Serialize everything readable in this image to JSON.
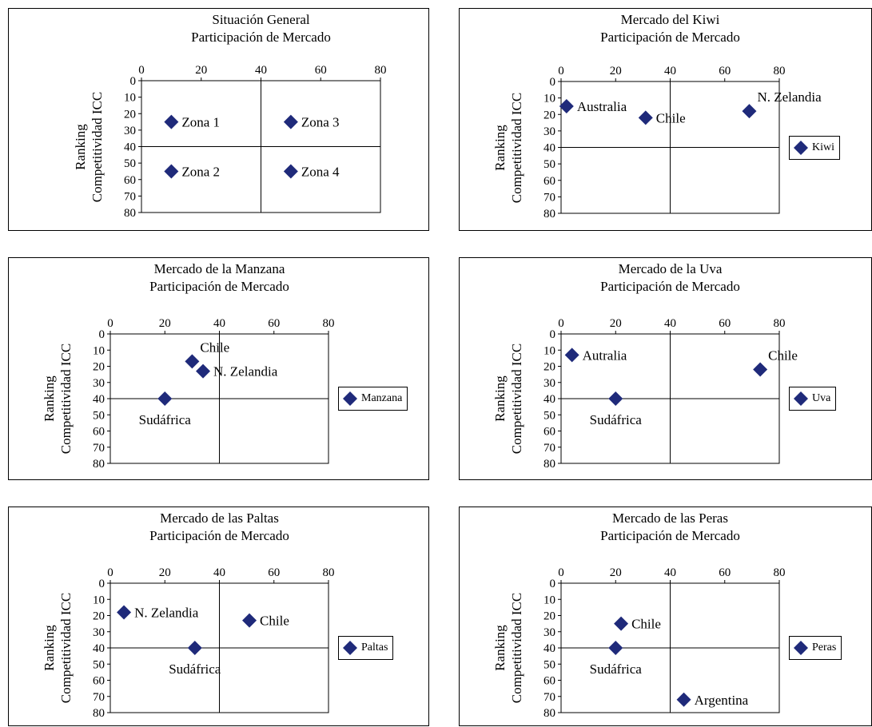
{
  "chart_data": [
    {
      "type": "scatter",
      "title": "Situación General",
      "subtitle": "Participación de Mercado",
      "ylabel": [
        "Ranking",
        "Competitividad ICC"
      ],
      "xlim": [
        0,
        80
      ],
      "ylim": [
        0,
        80
      ],
      "xticks": [
        "0",
        "20",
        "40",
        "60",
        "80"
      ],
      "yticks": [
        "0",
        "10",
        "20",
        "30",
        "40",
        "50",
        "60",
        "70",
        "80"
      ],
      "points": [
        {
          "x": 10,
          "y": 25,
          "label": "Zona 1"
        },
        {
          "x": 10,
          "y": 55,
          "label": "Zona 2"
        },
        {
          "x": 50,
          "y": 25,
          "label": "Zona 3"
        },
        {
          "x": 50,
          "y": 55,
          "label": "Zona 4"
        }
      ],
      "legend": ""
    },
    {
      "type": "scatter",
      "title": "Mercado del Kiwi",
      "subtitle": "Participación de Mercado",
      "ylabel": [
        "Ranking",
        "Competitividad ICC"
      ],
      "xlim": [
        0,
        80
      ],
      "ylim": [
        0,
        80
      ],
      "xticks": [
        "0",
        "20",
        "40",
        "60",
        "80"
      ],
      "yticks": [
        "0",
        "10",
        "20",
        "30",
        "40",
        "50",
        "60",
        "70",
        "80"
      ],
      "points": [
        {
          "x": 2,
          "y": 15,
          "label": "Australia"
        },
        {
          "x": 31,
          "y": 22,
          "label": "Chile"
        },
        {
          "x": 69,
          "y": 18,
          "label": "N. Zelandia"
        }
      ],
      "legend": "Kiwi"
    },
    {
      "type": "scatter",
      "title": "Mercado de la Manzana",
      "subtitle": "Participación de Mercado",
      "ylabel": [
        "Ranking",
        "Competitividad ICC"
      ],
      "xlim": [
        0,
        80
      ],
      "ylim": [
        0,
        80
      ],
      "xticks": [
        "0",
        "20",
        "40",
        "60",
        "80"
      ],
      "yticks": [
        "0",
        "10",
        "20",
        "30",
        "40",
        "50",
        "60",
        "70",
        "80"
      ],
      "points": [
        {
          "x": 30,
          "y": 17,
          "label": "Chile"
        },
        {
          "x": 34,
          "y": 23,
          "label": "N. Zelandia"
        },
        {
          "x": 20,
          "y": 40,
          "label": "Sudáfrica"
        }
      ],
      "legend": "Manzana"
    },
    {
      "type": "scatter",
      "title": "Mercado de la Uva",
      "subtitle": "Participación de Mercado",
      "ylabel": [
        "Ranking",
        "Competitividad ICC"
      ],
      "xlim": [
        0,
        80
      ],
      "ylim": [
        0,
        80
      ],
      "xticks": [
        "0",
        "20",
        "40",
        "60",
        "80"
      ],
      "yticks": [
        "0",
        "10",
        "20",
        "30",
        "40",
        "50",
        "60",
        "70",
        "80"
      ],
      "points": [
        {
          "x": 4,
          "y": 13,
          "label": "Autralia"
        },
        {
          "x": 73,
          "y": 22,
          "label": "Chile"
        },
        {
          "x": 20,
          "y": 40,
          "label": "Sudáfrica"
        }
      ],
      "legend": "Uva"
    },
    {
      "type": "scatter",
      "title": "Mercado de las Paltas",
      "subtitle": "Participación de Mercado",
      "ylabel": [
        "Ranking",
        "Competitividad ICC"
      ],
      "xlim": [
        0,
        80
      ],
      "ylim": [
        0,
        80
      ],
      "xticks": [
        "0",
        "20",
        "40",
        "60",
        "80"
      ],
      "yticks": [
        "0",
        "10",
        "20",
        "30",
        "40",
        "50",
        "60",
        "70",
        "80"
      ],
      "points": [
        {
          "x": 5,
          "y": 18,
          "label": "N. Zelandia"
        },
        {
          "x": 51,
          "y": 23,
          "label": "Chile"
        },
        {
          "x": 31,
          "y": 40,
          "label": "Sudáfrica"
        }
      ],
      "legend": "Paltas"
    },
    {
      "type": "scatter",
      "title": "Mercado de las Peras",
      "subtitle": "Participación de Mercado",
      "ylabel": [
        "Ranking",
        "Competitividad ICC"
      ],
      "xlim": [
        0,
        80
      ],
      "ylim": [
        0,
        80
      ],
      "xticks": [
        "0",
        "20",
        "40",
        "60",
        "80"
      ],
      "yticks": [
        "0",
        "10",
        "20",
        "30",
        "40",
        "50",
        "60",
        "70",
        "80"
      ],
      "points": [
        {
          "x": 22,
          "y": 25,
          "label": "Chile"
        },
        {
          "x": 20,
          "y": 40,
          "label": "Sudáfrica"
        },
        {
          "x": 45,
          "y": 72,
          "label": "Argentina"
        }
      ],
      "legend": "Peras"
    }
  ],
  "colors": {
    "marker": "#1f2a7a",
    "axis": "#000000"
  }
}
